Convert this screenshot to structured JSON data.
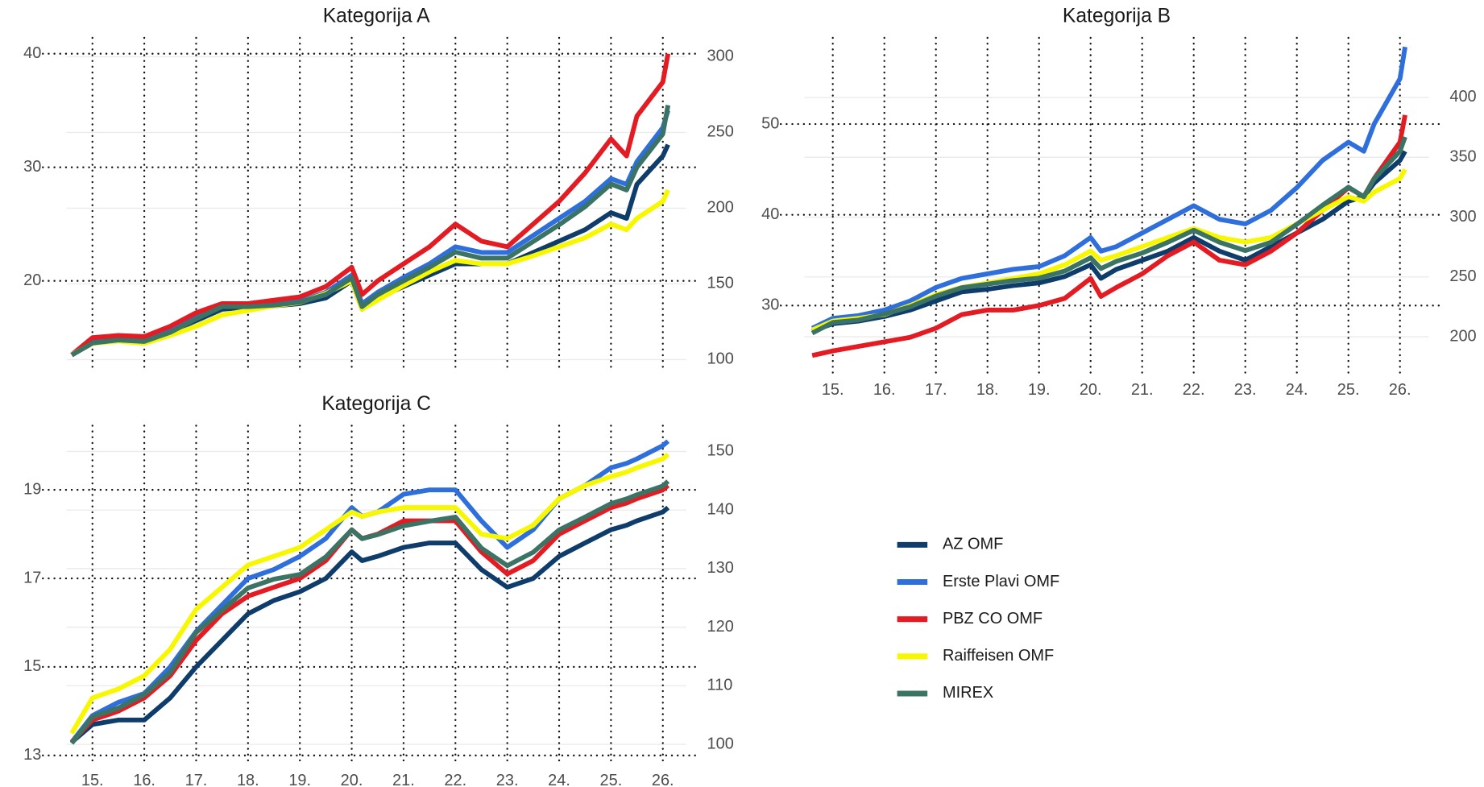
{
  "chart_data": [
    {
      "type": "line",
      "title": "Kategorija A",
      "x_labels": false,
      "x": [
        2014.6,
        2015,
        2015.5,
        2016,
        2016.5,
        2017,
        2017.5,
        2018,
        2018.5,
        2019,
        2019.5,
        2020,
        2020.2,
        2020.5,
        2021,
        2021.5,
        2022,
        2022.5,
        2023,
        2023.5,
        2024,
        2024.5,
        2025,
        2025.3,
        2025.5,
        2026,
        2026.1
      ],
      "xlim": [
        2014.5,
        2026.45
      ],
      "xticks": [
        2015,
        2016,
        2017,
        2018,
        2019,
        2020,
        2021,
        2022,
        2023,
        2024,
        2025,
        2026
      ],
      "ylim": [
        12,
        41.4
      ],
      "yticks": [
        20,
        30,
        40
      ],
      "y2lim": [
        92,
        312.5
      ],
      "y2ticks": [
        100,
        150,
        200,
        250,
        300
      ],
      "series": [
        {
          "name": "AZ OMF",
          "color": "#0f3d6b",
          "values": [
            13.5,
            14.5,
            14.8,
            14.8,
            15.5,
            16.5,
            17.5,
            17.7,
            17.8,
            18,
            18.5,
            20,
            17.5,
            18.5,
            19.5,
            20.5,
            21.5,
            21.5,
            21.5,
            22.5,
            23.5,
            24.5,
            26,
            25.5,
            28.5,
            31,
            32
          ]
        },
        {
          "name": "Erste Plavi OMF",
          "color": "#2f6fdc",
          "values": [
            13.5,
            14.7,
            14.9,
            14.7,
            15.6,
            16.8,
            17.8,
            17.9,
            18,
            18.2,
            19,
            20.5,
            18,
            19,
            20.3,
            21.5,
            23,
            22.5,
            22.5,
            24,
            25.5,
            27,
            29,
            28.5,
            30.5,
            33.5,
            35
          ]
        },
        {
          "name": "PBZ CO OMF",
          "color": "#e31b23",
          "values": [
            13.5,
            15,
            15.2,
            15.1,
            16,
            17.2,
            18,
            18,
            18.3,
            18.6,
            19.5,
            21.2,
            18.8,
            20,
            21.5,
            23,
            25,
            23.5,
            23,
            25,
            27,
            29.5,
            32.5,
            31,
            34.5,
            37.5,
            40
          ]
        },
        {
          "name": "Raiffeisen OMF",
          "color": "#f7f700",
          "values": [
            13.5,
            14.5,
            14.7,
            14.5,
            15.2,
            16,
            17,
            17.4,
            17.8,
            18.1,
            18.9,
            20,
            17.5,
            18.3,
            19.6,
            20.8,
            21.8,
            21.5,
            21.5,
            22.2,
            23,
            23.8,
            25,
            24.5,
            25.5,
            27,
            28
          ]
        },
        {
          "name": "MIREX",
          "color": "#3b7365",
          "axis": "y2",
          "values": [
            103,
            111,
            113,
            112,
            118,
            127,
            135,
            135,
            136,
            138,
            143,
            154,
            135,
            143,
            152,
            161,
            171,
            167,
            167,
            178,
            189,
            201,
            216,
            212,
            227,
            249,
            268
          ]
        }
      ]
    },
    {
      "type": "line",
      "title": "Kategorija B",
      "x_labels": true,
      "x": [
        2014.6,
        2015,
        2015.5,
        2016,
        2016.5,
        2017,
        2017.5,
        2018,
        2018.5,
        2019,
        2019.5,
        2020,
        2020.2,
        2020.5,
        2021,
        2021.5,
        2022,
        2022.5,
        2023,
        2023.5,
        2024,
        2024.5,
        2025,
        2025.3,
        2025.5,
        2026,
        2026.1
      ],
      "xlim": [
        2014.45,
        2026.56
      ],
      "xticks": [
        {
          "value": 2015,
          "label": "15."
        },
        {
          "value": 2016,
          "label": "16."
        },
        {
          "value": 2017,
          "label": "17."
        },
        {
          "value": 2018,
          "label": "18."
        },
        {
          "value": 2019,
          "label": "19."
        },
        {
          "value": 2020,
          "label": "20."
        },
        {
          "value": 2021,
          "label": "21."
        },
        {
          "value": 2022,
          "label": "22."
        },
        {
          "value": 2023,
          "label": "23."
        },
        {
          "value": 2024,
          "label": "24."
        },
        {
          "value": 2025,
          "label": "25."
        },
        {
          "value": 2026,
          "label": "26."
        }
      ],
      "ylim": [
        22.5,
        59.5
      ],
      "yticks": [
        30,
        40,
        50
      ],
      "y2lim": [
        169.2,
        449.8
      ],
      "y2ticks": [
        200,
        250,
        300,
        350,
        400
      ],
      "series": [
        {
          "values": [
            27.2,
            28,
            28.3,
            28.8,
            29.5,
            30.5,
            31.5,
            31.8,
            32.2,
            32.5,
            33.2,
            34.5,
            33,
            34,
            35,
            36,
            37.5,
            36,
            35,
            36.5,
            38,
            39.5,
            41.5,
            42,
            43.5,
            46,
            47
          ]
        },
        {
          "values": [
            27.5,
            28.6,
            28.9,
            29.5,
            30.5,
            32,
            33,
            33.5,
            34,
            34.3,
            35.5,
            37.5,
            36,
            36.5,
            38,
            39.5,
            41,
            39.5,
            39,
            40.5,
            43,
            46,
            48,
            47,
            50,
            55,
            58.5
          ]
        },
        {
          "values": [
            24.5,
            25,
            25.5,
            26,
            26.5,
            27.5,
            29,
            29.5,
            29.5,
            30,
            30.8,
            33,
            31,
            32,
            33.5,
            35.5,
            37,
            35,
            34.5,
            36,
            38,
            40.5,
            43,
            42,
            44,
            48,
            51
          ]
        },
        {
          "values": [
            27.3,
            28.3,
            28.6,
            29,
            30,
            31.2,
            32,
            32.5,
            33,
            33.5,
            34.5,
            36,
            35,
            35.5,
            36.5,
            37.5,
            38.5,
            37.5,
            37,
            37.5,
            39,
            40.5,
            42,
            41.5,
            42.5,
            44,
            45
          ]
        },
        {
          "axis": "y2",
          "values": [
            203,
            212,
            214,
            219,
            225,
            234,
            241,
            244,
            247,
            249,
            255,
            266,
            257,
            263,
            270,
            279,
            289,
            279,
            272,
            279,
            294,
            310,
            325,
            317,
            332,
            355,
            367
          ]
        }
      ]
    },
    {
      "type": "line",
      "title": "Kategorija C",
      "x_labels": true,
      "x": [
        2014.6,
        2015,
        2015.5,
        2016,
        2016.5,
        2017,
        2017.5,
        2018,
        2018.5,
        2019,
        2019.5,
        2020,
        2020.2,
        2020.5,
        2021,
        2021.5,
        2022,
        2022.5,
        2023,
        2023.5,
        2024,
        2024.5,
        2025,
        2025.3,
        2025.5,
        2026,
        2026.1
      ],
      "xlim": [
        2014.5,
        2026.45
      ],
      "xticks": [
        {
          "value": 2015,
          "label": "15."
        },
        {
          "value": 2016,
          "label": "16."
        },
        {
          "value": 2017,
          "label": "17."
        },
        {
          "value": 2018,
          "label": "18."
        },
        {
          "value": 2019,
          "label": "19."
        },
        {
          "value": 2020,
          "label": "20."
        },
        {
          "value": 2021,
          "label": "21."
        },
        {
          "value": 2022,
          "label": "22."
        },
        {
          "value": 2023,
          "label": "23."
        },
        {
          "value": 2024,
          "label": "24."
        },
        {
          "value": 2025,
          "label": "25."
        },
        {
          "value": 2026,
          "label": "26."
        }
      ],
      "ylim": [
        12.8,
        20.45
      ],
      "yticks": [
        13,
        15,
        17,
        19
      ],
      "y2lim": [
        96.6,
        154.4
      ],
      "y2ticks": [
        100,
        110,
        120,
        130,
        140,
        150
      ],
      "series": [
        {
          "values": [
            13.3,
            13.7,
            13.8,
            13.8,
            14.3,
            15,
            15.6,
            16.2,
            16.5,
            16.7,
            17,
            17.6,
            17.4,
            17.5,
            17.7,
            17.8,
            17.8,
            17.2,
            16.8,
            17,
            17.5,
            17.8,
            18.1,
            18.2,
            18.3,
            18.5,
            18.6
          ]
        },
        {
          "values": [
            13.3,
            13.9,
            14.2,
            14.4,
            15,
            15.8,
            16.4,
            17,
            17.2,
            17.5,
            17.9,
            18.6,
            18.4,
            18.5,
            18.9,
            19,
            19,
            18.3,
            17.7,
            18.1,
            18.8,
            19.1,
            19.5,
            19.6,
            19.7,
            20,
            20.1
          ]
        },
        {
          "values": [
            13.3,
            13.8,
            14,
            14.3,
            14.8,
            15.6,
            16.2,
            16.6,
            16.8,
            17,
            17.4,
            18.1,
            17.9,
            18,
            18.3,
            18.3,
            18.3,
            17.6,
            17.1,
            17.4,
            18,
            18.3,
            18.6,
            18.7,
            18.8,
            19,
            19.1
          ]
        },
        {
          "values": [
            13.5,
            14.3,
            14.5,
            14.8,
            15.4,
            16.3,
            16.8,
            17.3,
            17.5,
            17.7,
            18.1,
            18.5,
            18.4,
            18.5,
            18.6,
            18.6,
            18.6,
            18,
            17.9,
            18.2,
            18.8,
            19.1,
            19.3,
            19.4,
            19.5,
            19.7,
            19.8
          ]
        },
        {
          "axis": "y2",
          "values": [
            100.2,
            104.7,
            106.2,
            108.5,
            112.3,
            119.1,
            122.9,
            126.7,
            128.2,
            129,
            132,
            136.6,
            135.1,
            135.8,
            137.3,
            138.1,
            138.8,
            133.5,
            130.5,
            132.8,
            136.6,
            138.8,
            141.1,
            141.9,
            142.6,
            144.1,
            144.9
          ]
        }
      ]
    }
  ]
}
